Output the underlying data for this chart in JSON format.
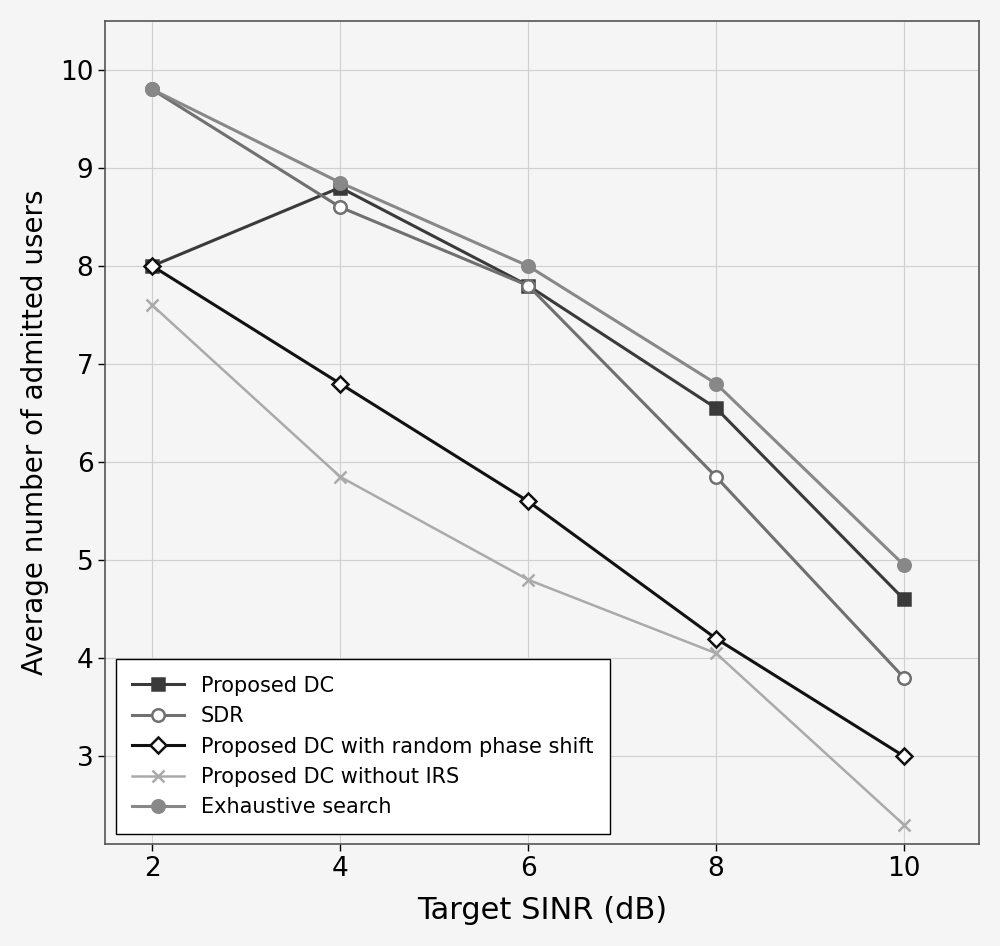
{
  "x": [
    2,
    4,
    6,
    8,
    10
  ],
  "series": [
    {
      "label": "Proposed DC",
      "y": [
        8.0,
        8.8,
        7.8,
        6.55,
        4.6
      ],
      "color": "#3a3a3a",
      "marker": "s",
      "markersize": 9,
      "linewidth": 2.2,
      "linestyle": "-",
      "markerfilled": true
    },
    {
      "label": "SDR",
      "y": [
        9.8,
        8.6,
        7.8,
        5.85,
        3.8
      ],
      "color": "#707070",
      "marker": "o",
      "markersize": 9,
      "linewidth": 2.2,
      "linestyle": "-",
      "markerfilled": false
    },
    {
      "label": "Proposed DC with random phase shift",
      "y": [
        8.0,
        6.8,
        5.6,
        4.2,
        3.0
      ],
      "color": "#111111",
      "marker": "D",
      "markersize": 8,
      "linewidth": 2.2,
      "linestyle": "-",
      "markerfilled": false
    },
    {
      "label": "Proposed DC without IRS",
      "y": [
        7.6,
        5.85,
        4.8,
        4.05,
        2.3
      ],
      "color": "#aaaaaa",
      "marker": "x",
      "markersize": 9,
      "linewidth": 1.8,
      "linestyle": "-",
      "markerfilled": false
    },
    {
      "label": "Exhaustive search",
      "y": [
        9.8,
        8.85,
        8.0,
        6.8,
        4.95
      ],
      "color": "#888888",
      "marker": "o",
      "markersize": 9,
      "linewidth": 2.2,
      "linestyle": "-",
      "markerfilled": true
    }
  ],
  "xlabel": "Target SINR (dB)",
  "ylabel": "Average number of admitted users",
  "xlim": [
    1.5,
    10.8
  ],
  "ylim": [
    2.1,
    10.5
  ],
  "xticks": [
    2,
    4,
    6,
    8,
    10
  ],
  "yticks": [
    3,
    4,
    5,
    6,
    7,
    8,
    9,
    10
  ],
  "grid": true,
  "legend_loc": "lower left",
  "xlabel_fontsize": 22,
  "ylabel_fontsize": 20,
  "tick_fontsize": 19,
  "legend_fontsize": 15,
  "background_color": "#f5f5f5"
}
